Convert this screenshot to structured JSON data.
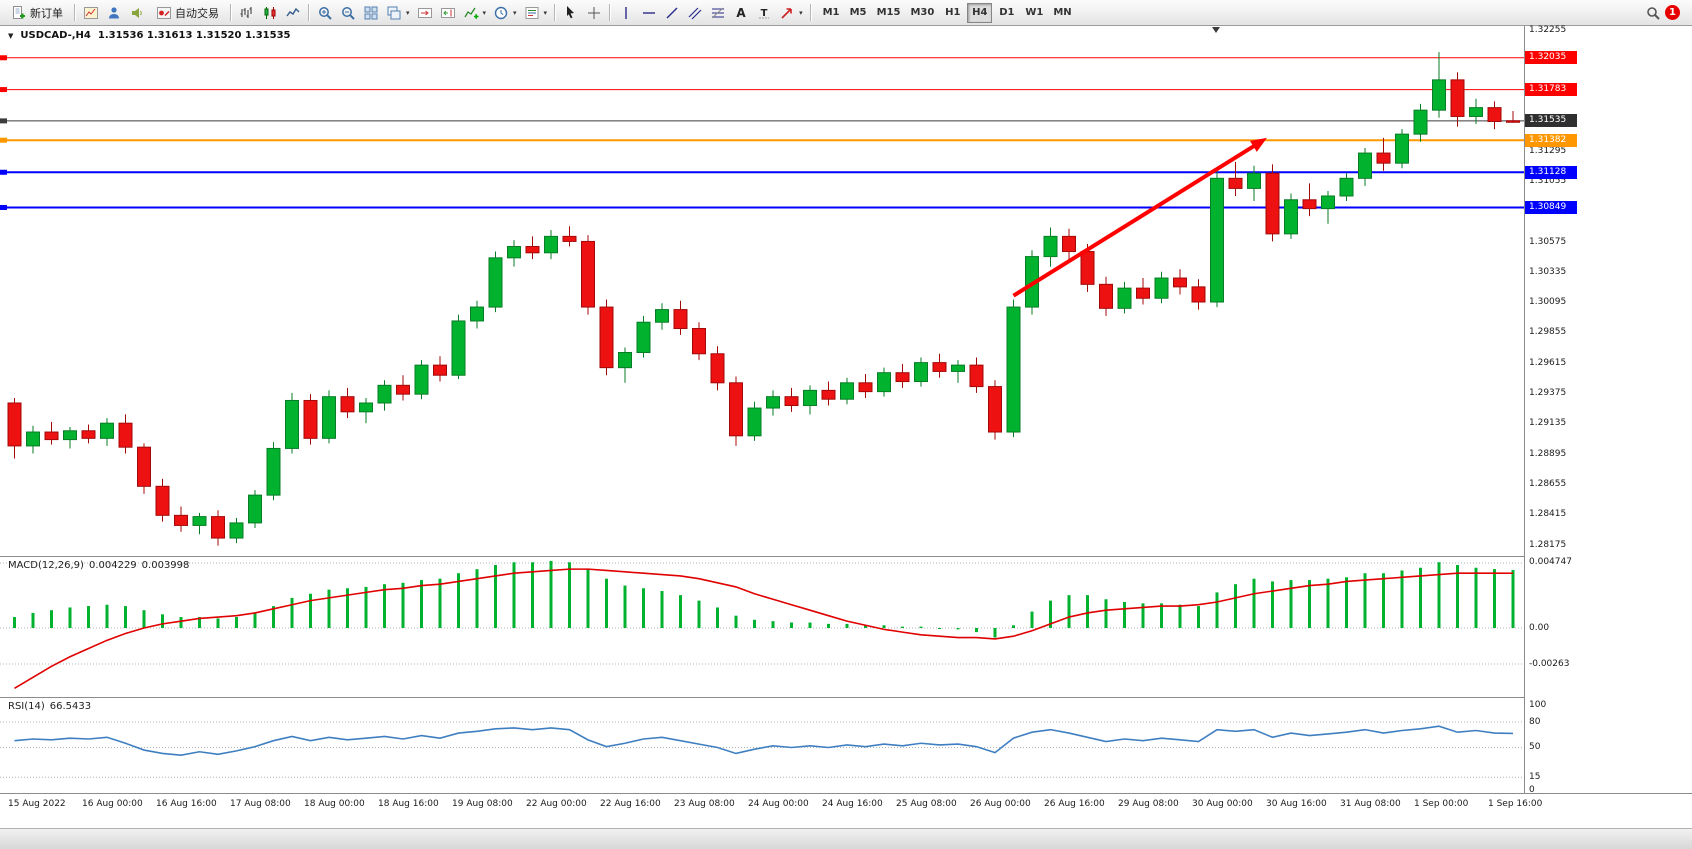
{
  "toolbar": {
    "buttons": {
      "new_order": "新订单",
      "autotrading": "自动交易"
    },
    "timeframes": {
      "items": [
        "M1",
        "M5",
        "M15",
        "M30",
        "H1",
        "H4",
        "D1",
        "W1",
        "MN"
      ],
      "active": "H4"
    },
    "notification_badge": "1",
    "icons": [
      "new-order-icon",
      "charts-icon",
      "profile-icon",
      "alerts-icon",
      "autotrading-icon",
      "bar-chart-icon",
      "candlestick-icon",
      "line-chart-icon",
      "zoom-in-icon",
      "zoom-out-icon",
      "tile-windows-icon",
      "cascade-windows-icon",
      "scroll-to-end-icon",
      "chart-shift-icon",
      "indicators-icon",
      "periods-icon",
      "templates-icon",
      "cursor-icon",
      "crosshair-icon",
      "vertical-line-icon",
      "horizontal-line-icon",
      "trendline-icon",
      "channel-icon",
      "fibonacci-icon",
      "text-icon",
      "text-label-icon",
      "arrows-icon",
      "search-icon",
      "notification-badge"
    ]
  },
  "chart": {
    "header": {
      "symbol_period": "USDCAD-,H4",
      "ohlc": "1.31536 1.31613 1.31520 1.31535"
    },
    "price_axis": {
      "plain_labels": [
        "1.32255",
        "1.31295",
        "1.31055",
        "1.30575",
        "1.30335",
        "1.30095",
        "1.29855",
        "1.29615",
        "1.29375",
        "1.29135",
        "1.28895",
        "1.28655",
        "1.28415",
        "1.28175"
      ]
    },
    "time_axis": [
      "15 Aug 2022",
      "16 Aug 00:00",
      "16 Aug 16:00",
      "17 Aug 08:00",
      "18 Aug 00:00",
      "18 Aug 16:00",
      "19 Aug 08:00",
      "22 Aug 00:00",
      "22 Aug 16:00",
      "23 Aug 08:00",
      "24 Aug 00:00",
      "24 Aug 16:00",
      "25 Aug 08:00",
      "26 Aug 00:00",
      "26 Aug 16:00",
      "29 Aug 08:00",
      "30 Aug 00:00",
      "30 Aug 16:00",
      "31 Aug 08:00",
      "1 Sep 00:00",
      "1 Sep 16:00"
    ],
    "panes": {
      "macd": {
        "label": "MACD(12,26,9)",
        "value_main": "0.004229",
        "value_signal": "0.003998",
        "axis": [
          "0.004747",
          "0.00",
          "-0.00263"
        ],
        "axis_values": [
          0.004747,
          0,
          -0.00263
        ]
      },
      "rsi": {
        "label": "RSI(14)",
        "value": "66.5433",
        "axis": [
          "100",
          "80",
          "50",
          "15",
          "0"
        ],
        "axis_values": [
          100,
          80,
          50,
          15,
          0
        ],
        "dashed_levels": [
          80,
          50,
          15
        ]
      }
    }
  },
  "chart_data": {
    "type": "candlestick",
    "symbol": "USDCAD-",
    "timeframe": "H4",
    "current_price": 1.31535,
    "price_range": [
      1.28175,
      1.32255
    ],
    "horizontal_lines": [
      {
        "price": 1.32035,
        "label": "1.32035",
        "color": "#ff0000",
        "badge_bg": "#ff0000",
        "width": 1
      },
      {
        "price": 1.31783,
        "label": "1.31783",
        "color": "#ff0000",
        "badge_bg": "#ff0000",
        "width": 1
      },
      {
        "price": 1.31535,
        "label": "1.31535",
        "color": "#3c3c3c",
        "badge_bg": "#2f2f2f",
        "width": 1
      },
      {
        "price": 1.31382,
        "label": "1.31382",
        "color": "#ff9800",
        "badge_bg": "#ff9800",
        "width": 2
      },
      {
        "price": 1.31128,
        "label": "1.31128",
        "color": "#0000ff",
        "badge_bg": "#0000ff",
        "width": 2
      },
      {
        "price": 1.30849,
        "label": "1.30849",
        "color": "#0000ff",
        "badge_bg": "#0000ff",
        "width": 2
      }
    ],
    "candles_ohlc": [
      [
        1.293,
        1.2934,
        1.2886,
        1.2896
      ],
      [
        1.2896,
        1.2912,
        1.289,
        1.2907
      ],
      [
        1.2907,
        1.2915,
        1.2897,
        1.2901
      ],
      [
        1.2901,
        1.2911,
        1.2894,
        1.2908
      ],
      [
        1.2908,
        1.2913,
        1.2898,
        1.2902
      ],
      [
        1.2902,
        1.2918,
        1.2896,
        1.2914
      ],
      [
        1.2914,
        1.2921,
        1.289,
        1.2895
      ],
      [
        1.2895,
        1.2898,
        1.2858,
        1.2864
      ],
      [
        1.2864,
        1.287,
        1.2836,
        1.2841
      ],
      [
        1.2841,
        1.2848,
        1.2828,
        1.2833
      ],
      [
        1.2833,
        1.2843,
        1.2826,
        1.284
      ],
      [
        1.284,
        1.2845,
        1.2817,
        1.2823
      ],
      [
        1.2823,
        1.2839,
        1.2819,
        1.2835
      ],
      [
        1.2835,
        1.2861,
        1.2831,
        1.2857
      ],
      [
        1.2857,
        1.2899,
        1.2853,
        1.2894
      ],
      [
        1.2894,
        1.2938,
        1.289,
        1.2932
      ],
      [
        1.2932,
        1.2937,
        1.2897,
        1.2902
      ],
      [
        1.2902,
        1.294,
        1.2898,
        1.2935
      ],
      [
        1.2935,
        1.2942,
        1.2918,
        1.2923
      ],
      [
        1.2923,
        1.2934,
        1.2914,
        1.293
      ],
      [
        1.293,
        1.2948,
        1.2924,
        1.2944
      ],
      [
        1.2944,
        1.2952,
        1.2932,
        1.2937
      ],
      [
        1.2937,
        1.2964,
        1.2933,
        1.296
      ],
      [
        1.296,
        1.2967,
        1.2947,
        1.2952
      ],
      [
        1.2952,
        1.3,
        1.2949,
        1.2995
      ],
      [
        1.2995,
        1.3011,
        1.2989,
        1.3006
      ],
      [
        1.3006,
        1.305,
        1.3002,
        1.3045
      ],
      [
        1.3045,
        1.3059,
        1.3038,
        1.3054
      ],
      [
        1.3054,
        1.3062,
        1.3044,
        1.3049
      ],
      [
        1.3049,
        1.3067,
        1.3044,
        1.3062
      ],
      [
        1.3062,
        1.307,
        1.3054,
        1.3058
      ],
      [
        1.3058,
        1.3063,
        1.3,
        1.3006
      ],
      [
        1.3006,
        1.3012,
        1.2952,
        1.2958
      ],
      [
        1.2958,
        1.2974,
        1.2946,
        1.297
      ],
      [
        1.297,
        1.2999,
        1.2966,
        1.2994
      ],
      [
        1.2994,
        1.3009,
        1.2988,
        1.3004
      ],
      [
        1.3004,
        1.3011,
        1.2984,
        1.2989
      ],
      [
        1.2989,
        1.2994,
        1.2964,
        1.2969
      ],
      [
        1.2969,
        1.2975,
        1.294,
        1.2946
      ],
      [
        1.2946,
        1.2951,
        1.2896,
        1.2904
      ],
      [
        1.2904,
        1.2931,
        1.29,
        1.2926
      ],
      [
        1.2926,
        1.294,
        1.292,
        1.2935
      ],
      [
        1.2935,
        1.2942,
        1.2923,
        1.2928
      ],
      [
        1.2928,
        1.2944,
        1.2921,
        1.294
      ],
      [
        1.294,
        1.2947,
        1.2928,
        1.2933
      ],
      [
        1.2933,
        1.295,
        1.2929,
        1.2946
      ],
      [
        1.2946,
        1.2953,
        1.2934,
        1.2939
      ],
      [
        1.2939,
        1.2958,
        1.2935,
        1.2954
      ],
      [
        1.2954,
        1.2961,
        1.2942,
        1.2947
      ],
      [
        1.2947,
        1.2966,
        1.2943,
        1.2962
      ],
      [
        1.2962,
        1.2969,
        1.295,
        1.2955
      ],
      [
        1.2955,
        1.2964,
        1.2946,
        1.296
      ],
      [
        1.296,
        1.2966,
        1.2938,
        1.2943
      ],
      [
        1.2943,
        1.2948,
        1.2901,
        1.2907
      ],
      [
        1.2907,
        1.3012,
        1.2903,
        1.3006
      ],
      [
        1.3006,
        1.3051,
        1.3,
        1.3046
      ],
      [
        1.3046,
        1.3069,
        1.3038,
        1.3062
      ],
      [
        1.3062,
        1.3068,
        1.3044,
        1.305
      ],
      [
        1.305,
        1.3056,
        1.3018,
        1.3024
      ],
      [
        1.3024,
        1.303,
        1.2999,
        1.3005
      ],
      [
        1.3005,
        1.3026,
        1.3001,
        1.3021
      ],
      [
        1.3021,
        1.3029,
        1.3008,
        1.3013
      ],
      [
        1.3013,
        1.3034,
        1.3009,
        1.3029
      ],
      [
        1.3029,
        1.3036,
        1.3016,
        1.3022
      ],
      [
        1.3022,
        1.3028,
        1.3004,
        1.301
      ],
      [
        1.301,
        1.3114,
        1.3006,
        1.3108
      ],
      [
        1.3108,
        1.3121,
        1.3094,
        1.31
      ],
      [
        1.31,
        1.3118,
        1.309,
        1.3112
      ],
      [
        1.3112,
        1.3119,
        1.3058,
        1.3064
      ],
      [
        1.3064,
        1.3096,
        1.306,
        1.3091
      ],
      [
        1.3091,
        1.3104,
        1.3078,
        1.3084
      ],
      [
        1.3084,
        1.3098,
        1.3072,
        1.3094
      ],
      [
        1.3094,
        1.3112,
        1.309,
        1.3108
      ],
      [
        1.3108,
        1.3132,
        1.3102,
        1.3128
      ],
      [
        1.3128,
        1.314,
        1.3114,
        1.312
      ],
      [
        1.312,
        1.3147,
        1.3116,
        1.3143
      ],
      [
        1.3143,
        1.3167,
        1.3137,
        1.3162
      ],
      [
        1.3162,
        1.3208,
        1.3156,
        1.3186
      ],
      [
        1.3186,
        1.3192,
        1.3149,
        1.3157
      ],
      [
        1.3157,
        1.3171,
        1.3151,
        1.3164
      ],
      [
        1.3164,
        1.3169,
        1.3147,
        1.3153
      ],
      [
        1.31536,
        1.31613,
        1.3152,
        1.31535
      ]
    ],
    "indicators": {
      "macd": {
        "params": "12,26,9",
        "main": 0.004229,
        "signal_value": 0.003998,
        "histogram": [
          0.0008,
          0.0011,
          0.0013,
          0.0015,
          0.0016,
          0.0017,
          0.0016,
          0.0013,
          0.001,
          0.0008,
          0.0008,
          0.0007,
          0.0008,
          0.0011,
          0.0016,
          0.0022,
          0.0025,
          0.0028,
          0.0029,
          0.003,
          0.0032,
          0.0033,
          0.0035,
          0.0036,
          0.004,
          0.0043,
          0.0046,
          0.0048,
          0.0048,
          0.0049,
          0.0048,
          0.0043,
          0.0036,
          0.0031,
          0.0029,
          0.0027,
          0.0024,
          0.002,
          0.0015,
          0.0009,
          0.0006,
          0.0005,
          0.0004,
          0.0004,
          0.0003,
          0.0003,
          0.0002,
          0.0002,
          0.0001,
          0.0001,
          0.0,
          -0.0001,
          -0.0003,
          -0.0007,
          0.0002,
          0.0012,
          0.002,
          0.0024,
          0.0024,
          0.0021,
          0.0019,
          0.0018,
          0.0018,
          0.0017,
          0.0016,
          0.0026,
          0.0032,
          0.0036,
          0.0034,
          0.0035,
          0.0035,
          0.0036,
          0.0037,
          0.004,
          0.004,
          0.0042,
          0.0044,
          0.0048,
          0.0046,
          0.0044,
          0.0043,
          0.004229
        ],
        "signal": [
          -0.0044,
          -0.0036,
          -0.0028,
          -0.0021,
          -0.0015,
          -0.0009,
          -0.0004,
          0.0,
          0.0003,
          0.0005,
          0.0007,
          0.0008,
          0.0009,
          0.0011,
          0.0014,
          0.0017,
          0.002,
          0.0022,
          0.0024,
          0.0026,
          0.0028,
          0.0029,
          0.0031,
          0.0032,
          0.0034,
          0.0036,
          0.0038,
          0.004,
          0.0041,
          0.0042,
          0.0043,
          0.0043,
          0.0042,
          0.0041,
          0.004,
          0.0039,
          0.0038,
          0.0036,
          0.0033,
          0.003,
          0.0025,
          0.0021,
          0.0017,
          0.0013,
          0.0009,
          0.0005,
          0.0002,
          -0.0001,
          -0.0003,
          -0.0005,
          -0.0006,
          -0.0007,
          -0.0007,
          -0.0008,
          -0.0006,
          -0.0002,
          0.0003,
          0.0008,
          0.0011,
          0.0013,
          0.0014,
          0.0015,
          0.0016,
          0.0016,
          0.0017,
          0.0019,
          0.0022,
          0.0025,
          0.0027,
          0.0029,
          0.0031,
          0.0032,
          0.0034,
          0.0035,
          0.0036,
          0.0037,
          0.0038,
          0.0039,
          0.004,
          0.004,
          0.004,
          0.003998
        ]
      },
      "rsi": {
        "period": 14,
        "value": 66.5433,
        "series": [
          58,
          60,
          59,
          61,
          60,
          62,
          55,
          47,
          43,
          41,
          45,
          42,
          46,
          51,
          58,
          63,
          58,
          62,
          59,
          61,
          63,
          60,
          64,
          61,
          67,
          69,
          72,
          73,
          71,
          73,
          71,
          59,
          51,
          55,
          60,
          62,
          58,
          54,
          50,
          43,
          48,
          52,
          50,
          52,
          50,
          53,
          51,
          54,
          52,
          55,
          53,
          54,
          51,
          44,
          61,
          68,
          71,
          67,
          62,
          57,
          60,
          58,
          61,
          59,
          57,
          71,
          69,
          71,
          62,
          67,
          64,
          66,
          68,
          71,
          67,
          70,
          72,
          75,
          68,
          70,
          67,
          66.5433
        ]
      }
    },
    "trend_arrow": {
      "from_index": 54,
      "from_price": 1.3015,
      "to_index": 67.7,
      "to_price": 1.314,
      "color": "#ff0000",
      "width": 4
    }
  }
}
